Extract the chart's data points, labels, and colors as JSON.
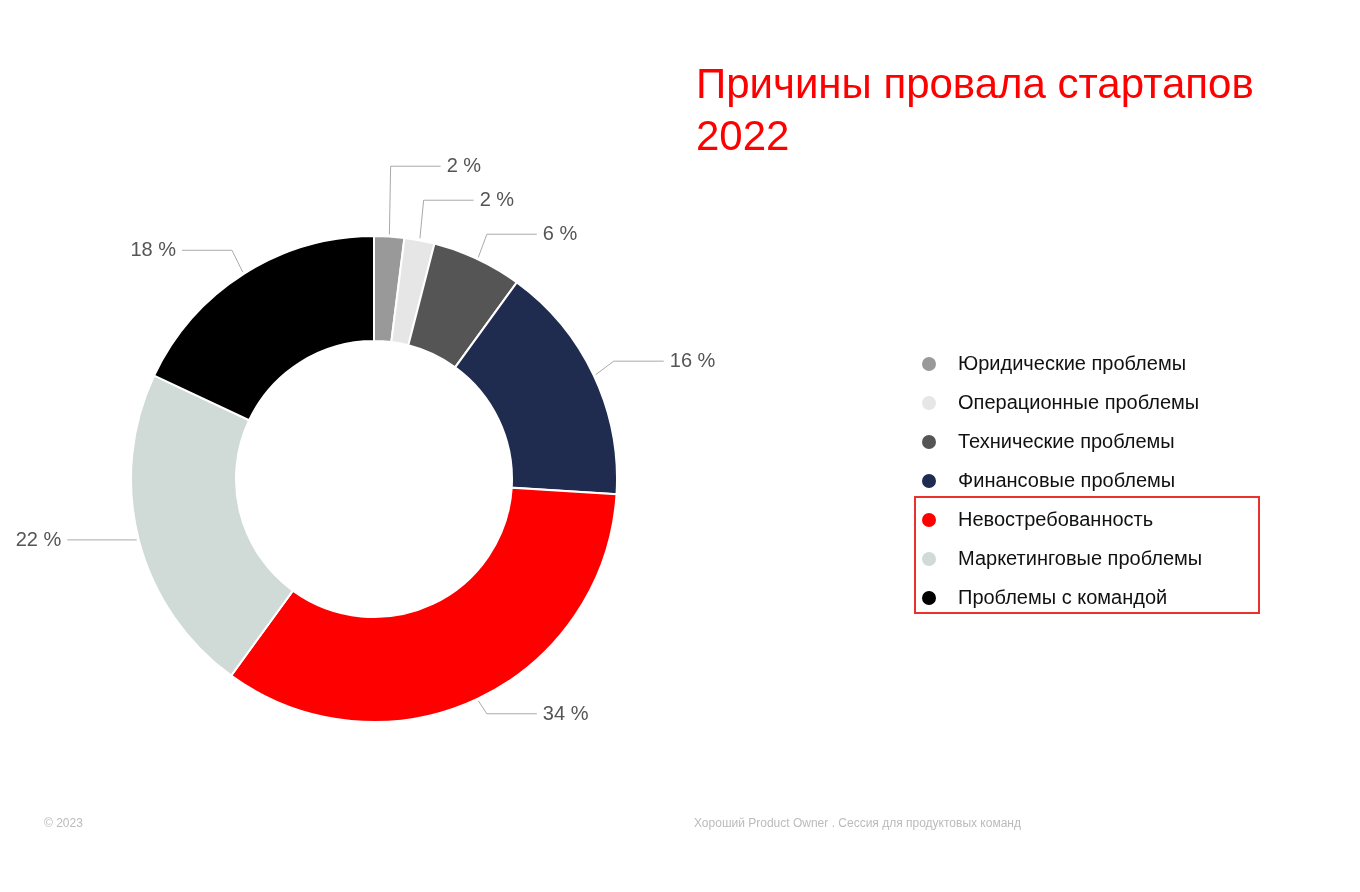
{
  "chart_data": {
    "type": "donut",
    "title": "Причины провала стартапов 2022",
    "categories": [
      "Юридические проблемы",
      "Операционные проблемы",
      "Технические проблемы",
      "Финансовые проблемы",
      "Невостребованность",
      "Маркетинговые проблемы",
      "Проблемы с командой"
    ],
    "values": [
      2,
      2,
      6,
      16,
      34,
      22,
      18
    ],
    "colors": [
      "#999999",
      "#e6e6e6",
      "#555555",
      "#1f2b4f",
      "#ff0000",
      "#d0dad6",
      "#000000"
    ],
    "value_labels": [
      "2 %",
      "2 %",
      "6 %",
      "16 %",
      "34 %",
      "22 %",
      "18 %"
    ],
    "legend": "right",
    "annotations": [
      "© 2023",
      "Хороший Product Owner . Сессия для продуктовых команд"
    ]
  }
}
